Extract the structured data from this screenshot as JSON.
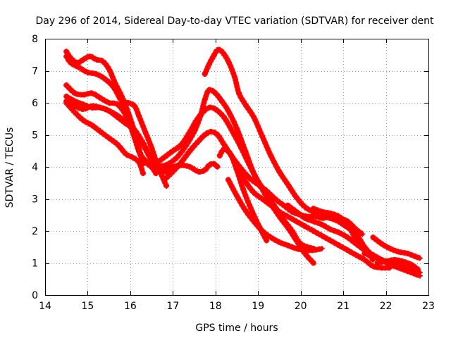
{
  "chart_data": {
    "type": "scatter",
    "title": "Day 296 of 2014, Sidereal Day-to-day VTEC variation (SDTVAR) for receiver dent",
    "xlabel": "GPS time / hours",
    "ylabel": "SDTVAR / TECUs",
    "xlim": [
      14,
      23
    ],
    "ylim": [
      0,
      8
    ],
    "xticks": [
      14,
      15,
      16,
      17,
      18,
      19,
      20,
      21,
      22,
      23
    ],
    "yticks": [
      0,
      1,
      2,
      3,
      4,
      5,
      6,
      7,
      8
    ],
    "grid": true,
    "marker": "+",
    "color": "#ff0000",
    "series": [
      {
        "name": "s1",
        "x": [
          14.5,
          14.6,
          14.75,
          14.9,
          15.05,
          15.2,
          15.35,
          15.5,
          15.65,
          15.8,
          15.95,
          16.1,
          16.2,
          16.3
        ],
        "y": [
          7.6,
          7.4,
          7.25,
          7.35,
          7.45,
          7.35,
          7.3,
          7.05,
          6.6,
          6.2,
          5.7,
          5.1,
          4.6,
          4.1
        ]
      },
      {
        "name": "s2",
        "x": [
          14.5,
          14.6,
          14.8,
          15.0,
          15.2,
          15.4,
          15.6,
          15.75,
          15.9,
          16.05,
          16.2,
          16.35,
          16.5,
          16.6
        ],
        "y": [
          7.45,
          7.25,
          7.1,
          6.95,
          6.9,
          6.75,
          6.5,
          6.15,
          5.8,
          5.2,
          4.5,
          4.2,
          4.0,
          3.8
        ]
      },
      {
        "name": "s3",
        "x": [
          14.5,
          14.7,
          14.9,
          15.1,
          15.3,
          15.5,
          15.7,
          15.9,
          16.05,
          16.2,
          16.3,
          16.4,
          16.5,
          16.6
        ],
        "y": [
          6.55,
          6.3,
          6.25,
          6.3,
          6.15,
          6.0,
          5.95,
          5.6,
          5.1,
          4.5,
          4.2,
          4.1,
          4.0,
          3.95
        ]
      },
      {
        "name": "s4",
        "x": [
          14.5,
          14.7,
          14.9,
          15.1,
          15.3,
          15.5,
          15.7,
          15.9,
          16.1,
          16.3,
          16.5,
          16.65,
          16.75,
          16.9
        ],
        "y": [
          6.2,
          6.05,
          5.95,
          5.85,
          5.85,
          5.75,
          5.6,
          5.4,
          5.15,
          4.7,
          4.2,
          4.0,
          3.9,
          3.8
        ]
      },
      {
        "name": "s5",
        "x": [
          14.5,
          14.7,
          14.9,
          15.1,
          15.3,
          15.5,
          15.7,
          15.9,
          16.1,
          16.3,
          16.5,
          16.65,
          16.8,
          16.9
        ],
        "y": [
          6.05,
          5.9,
          5.8,
          5.9,
          5.85,
          5.75,
          5.55,
          5.35,
          5.15,
          4.75,
          4.25,
          4.05,
          4.0,
          3.9
        ]
      },
      {
        "name": "s6",
        "x": [
          14.5,
          14.7,
          14.9,
          15.1,
          15.3,
          15.5,
          15.7,
          15.9,
          16.05,
          16.2,
          16.3
        ],
        "y": [
          6.0,
          5.7,
          5.45,
          5.3,
          5.1,
          4.9,
          4.7,
          4.4,
          4.3,
          4.15,
          3.8
        ]
      },
      {
        "name": "s7",
        "x": [
          15.8,
          15.95,
          16.1,
          16.2,
          16.35,
          16.5,
          16.65,
          16.75,
          16.85
        ],
        "y": [
          6.0,
          6.0,
          5.9,
          5.6,
          5.1,
          4.6,
          4.0,
          3.7,
          3.4
        ]
      },
      {
        "name": "s8",
        "x": [
          16.7,
          16.85,
          17.0,
          17.2,
          17.4,
          17.55,
          17.7,
          17.85,
          18.0,
          18.2,
          18.4,
          18.6,
          18.8,
          19.0,
          19.2,
          19.4,
          19.6,
          19.8,
          20.0,
          20.3
        ],
        "y": [
          4.2,
          4.35,
          4.5,
          4.7,
          5.1,
          5.45,
          5.7,
          5.85,
          5.8,
          5.55,
          5.1,
          4.6,
          4.05,
          3.55,
          3.15,
          2.75,
          2.35,
          2.0,
          1.6,
          1.45
        ]
      },
      {
        "name": "s9",
        "x": [
          16.7,
          16.9,
          17.1,
          17.3,
          17.5,
          17.65,
          17.75,
          17.85,
          18.0,
          18.15,
          18.3,
          18.5,
          18.7,
          18.9,
          19.1,
          19.3,
          19.5,
          19.7,
          19.9,
          20.1,
          20.3
        ],
        "y": [
          4.0,
          4.1,
          4.3,
          4.65,
          5.1,
          5.6,
          6.1,
          6.4,
          6.3,
          6.05,
          5.75,
          5.2,
          4.5,
          3.8,
          3.3,
          2.85,
          2.45,
          2.1,
          1.7,
          1.3,
          1.0
        ]
      },
      {
        "name": "s10",
        "x": [
          16.8,
          17.0,
          17.2,
          17.4,
          17.6,
          17.75,
          17.9,
          18.05,
          18.2,
          18.4,
          18.6,
          18.8,
          19.0,
          19.2,
          19.4,
          19.6,
          19.8,
          20.0,
          20.2,
          20.5,
          20.8,
          21.0,
          21.3,
          21.5,
          21.7
        ],
        "y": [
          3.6,
          3.85,
          4.15,
          4.5,
          4.8,
          5.0,
          5.1,
          5.0,
          4.7,
          4.3,
          3.95,
          3.65,
          3.45,
          3.25,
          3.0,
          2.8,
          2.6,
          2.5,
          2.45,
          2.45,
          2.35,
          2.2,
          1.9,
          1.5,
          1.2
        ]
      },
      {
        "name": "s11",
        "x": [
          16.6,
          16.8,
          17.0,
          17.2,
          17.4,
          17.6,
          17.75,
          17.85,
          17.95,
          18.05
        ],
        "y": [
          3.85,
          3.9,
          4.0,
          4.05,
          4.0,
          3.85,
          3.9,
          4.05,
          4.1,
          4.0
        ]
      },
      {
        "name": "s12",
        "x": [
          17.75,
          17.85,
          17.95,
          18.05,
          18.15,
          18.3,
          18.45,
          18.55,
          18.7,
          18.9,
          19.1,
          19.3,
          19.5,
          19.7,
          19.9,
          20.1,
          20.3,
          20.6,
          20.9,
          21.1
        ],
        "y": [
          6.9,
          7.2,
          7.45,
          7.65,
          7.6,
          7.3,
          6.8,
          6.3,
          5.95,
          5.55,
          4.95,
          4.35,
          3.85,
          3.45,
          3.05,
          2.75,
          2.6,
          2.45,
          2.35,
          2.3
        ]
      },
      {
        "name": "s13",
        "x": [
          18.1,
          18.2,
          18.35,
          18.5,
          18.65,
          18.8,
          18.95,
          19.1,
          19.2
        ],
        "y": [
          4.35,
          4.55,
          4.4,
          3.9,
          3.3,
          2.8,
          2.35,
          1.95,
          1.7
        ]
      },
      {
        "name": "s14",
        "x": [
          18.3,
          18.5,
          18.7,
          18.9,
          19.1,
          19.3,
          19.5,
          19.7,
          19.9,
          20.1,
          20.3,
          20.5
        ],
        "y": [
          3.6,
          3.1,
          2.65,
          2.3,
          2.0,
          1.8,
          1.65,
          1.55,
          1.45,
          1.4,
          1.4,
          1.45
        ]
      },
      {
        "name": "s15",
        "x": [
          18.5,
          18.7,
          18.9,
          19.1,
          19.3,
          19.5,
          19.7,
          19.9,
          20.1,
          20.3,
          20.5,
          20.7,
          20.9,
          21.1,
          21.3,
          21.5,
          21.7,
          21.9,
          22.1
        ],
        "y": [
          4.0,
          3.55,
          3.2,
          3.0,
          2.8,
          2.6,
          2.45,
          2.3,
          2.15,
          2.0,
          1.85,
          1.7,
          1.55,
          1.4,
          1.25,
          1.1,
          0.9,
          0.85,
          0.85
        ]
      },
      {
        "name": "s16",
        "x": [
          19.7,
          19.9,
          20.1,
          20.3,
          20.5,
          20.7,
          20.9,
          21.1,
          21.3,
          21.5,
          21.7,
          21.9,
          22.1,
          22.3,
          22.5,
          22.7,
          22.8
        ],
        "y": [
          2.8,
          2.6,
          2.4,
          2.3,
          2.2,
          2.05,
          1.95,
          1.8,
          1.6,
          1.4,
          1.25,
          1.1,
          0.95,
          0.85,
          0.75,
          0.65,
          0.6
        ]
      },
      {
        "name": "s17",
        "x": [
          20.3,
          20.5,
          20.7,
          20.9,
          21.1,
          21.3,
          21.5,
          21.7
        ],
        "y": [
          2.7,
          2.6,
          2.55,
          2.45,
          2.2,
          1.75,
          1.45,
          1.1
        ]
      },
      {
        "name": "s18",
        "x": [
          20.3,
          20.5,
          20.7,
          20.9,
          21.1,
          21.3,
          21.45
        ],
        "y": [
          2.5,
          2.4,
          2.45,
          2.4,
          2.3,
          2.05,
          1.9
        ]
      },
      {
        "name": "s19",
        "x": [
          21.7,
          21.9,
          22.1,
          22.3,
          22.5,
          22.7,
          22.8
        ],
        "y": [
          1.8,
          1.6,
          1.45,
          1.35,
          1.3,
          1.2,
          1.15
        ]
      },
      {
        "name": "s20",
        "x": [
          21.5,
          21.7,
          21.9,
          22.1,
          22.3,
          22.5,
          22.7,
          22.8
        ],
        "y": [
          1.3,
          1.2,
          1.1,
          1.0,
          0.95,
          0.85,
          0.75,
          0.7
        ]
      },
      {
        "name": "s21",
        "x": [
          21.8,
          22.0,
          22.2,
          22.4,
          22.6,
          22.75
        ],
        "y": [
          1.0,
          1.05,
          1.1,
          1.05,
          0.95,
          0.8
        ]
      }
    ]
  }
}
